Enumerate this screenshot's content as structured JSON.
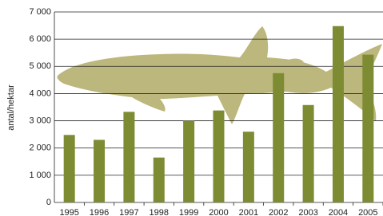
{
  "chart_data": {
    "type": "bar",
    "y_label": "antal/hektar",
    "categories": [
      "1995",
      "1996",
      "1997",
      "1998",
      "1999",
      "2000",
      "2001",
      "2002",
      "2003",
      "2004",
      "2005"
    ],
    "values": [
      2480,
      2300,
      3330,
      1650,
      3000,
      3380,
      2600,
      4750,
      3580,
      6480,
      5430
    ],
    "color": "#7d8b33",
    "ylim": [
      0,
      7000
    ],
    "yticks": [
      0,
      {
        "value": 1000,
        "label": "1 000"
      },
      {
        "value": 2000,
        "label": "2 000"
      },
      {
        "value": 3000,
        "label": "3 000"
      },
      {
        "value": 4000,
        "label": "4 000"
      },
      {
        "value": 5000,
        "label": "5 000"
      },
      {
        "value": 6000,
        "label": "6 000"
      },
      {
        "value": 7000,
        "label": "7 000"
      }
    ],
    "grid": true
  }
}
